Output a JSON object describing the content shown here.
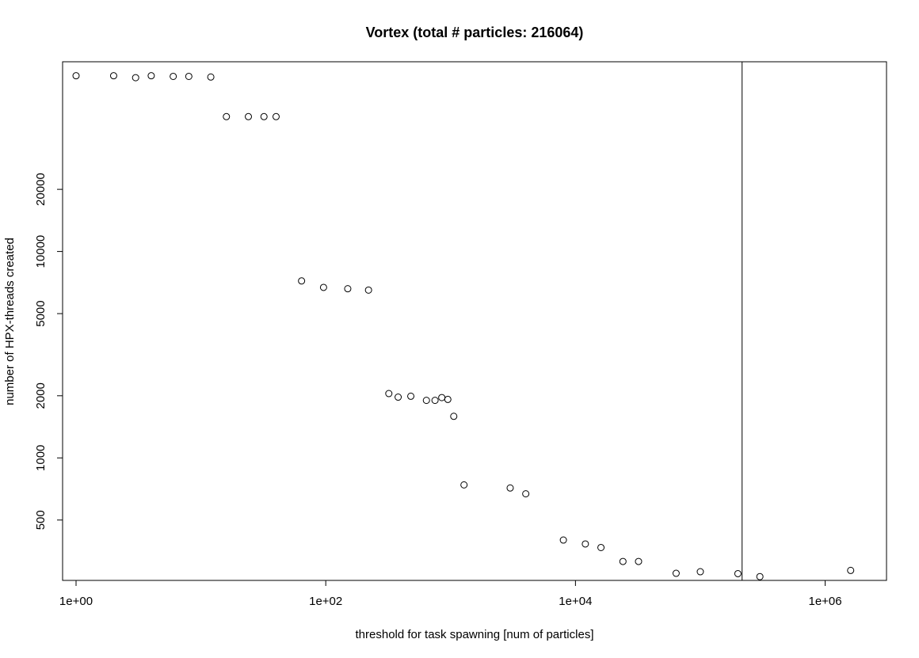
{
  "chart_data": {
    "type": "scatter",
    "title": "Vortex (total # particles: 216064)",
    "xlabel": "threshold for task spawning [num of particles]",
    "ylabel": "number of HPX-threads created",
    "x_scale": "log",
    "y_scale": "log",
    "xlim": [
      0.78,
      3100000
    ],
    "ylim": [
      255,
      83000
    ],
    "x_ticks": [
      {
        "value": 1,
        "label": "1e+00"
      },
      {
        "value": 100,
        "label": "1e+02"
      },
      {
        "value": 10000,
        "label": "1e+04"
      },
      {
        "value": 1000000,
        "label": "1e+06"
      }
    ],
    "y_ticks": [
      {
        "value": 500,
        "label": "500"
      },
      {
        "value": 1000,
        "label": "1000"
      },
      {
        "value": 2000,
        "label": "2000"
      },
      {
        "value": 5000,
        "label": "5000"
      },
      {
        "value": 10000,
        "label": "10000"
      },
      {
        "value": 20000,
        "label": "20000"
      }
    ],
    "reference_line": {
      "orientation": "vertical",
      "x": 216064
    },
    "marker": "open-circle",
    "grid": false,
    "points": [
      {
        "x": 1,
        "y": 71000
      },
      {
        "x": 2,
        "y": 71000
      },
      {
        "x": 3,
        "y": 69500
      },
      {
        "x": 4,
        "y": 71000
      },
      {
        "x": 6,
        "y": 70500
      },
      {
        "x": 8,
        "y": 70500
      },
      {
        "x": 12,
        "y": 70000
      },
      {
        "x": 16,
        "y": 45000
      },
      {
        "x": 24,
        "y": 45000
      },
      {
        "x": 32,
        "y": 45000
      },
      {
        "x": 40,
        "y": 45000
      },
      {
        "x": 64,
        "y": 7200
      },
      {
        "x": 96,
        "y": 6700
      },
      {
        "x": 150,
        "y": 6600
      },
      {
        "x": 220,
        "y": 6500
      },
      {
        "x": 320,
        "y": 2050
      },
      {
        "x": 380,
        "y": 1970
      },
      {
        "x": 480,
        "y": 1990
      },
      {
        "x": 640,
        "y": 1900
      },
      {
        "x": 750,
        "y": 1900
      },
      {
        "x": 850,
        "y": 1960
      },
      {
        "x": 950,
        "y": 1920
      },
      {
        "x": 1060,
        "y": 1590
      },
      {
        "x": 1280,
        "y": 740
      },
      {
        "x": 3000,
        "y": 715
      },
      {
        "x": 4000,
        "y": 670
      },
      {
        "x": 8000,
        "y": 400
      },
      {
        "x": 12000,
        "y": 383
      },
      {
        "x": 16000,
        "y": 368
      },
      {
        "x": 24000,
        "y": 315
      },
      {
        "x": 32000,
        "y": 315
      },
      {
        "x": 64000,
        "y": 276
      },
      {
        "x": 100000,
        "y": 281
      },
      {
        "x": 200000,
        "y": 275
      },
      {
        "x": 300000,
        "y": 266
      },
      {
        "x": 1600000,
        "y": 285
      }
    ]
  }
}
